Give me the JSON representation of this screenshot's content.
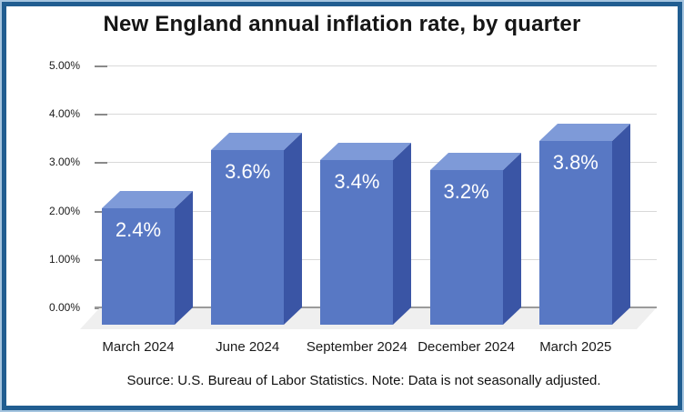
{
  "chart_data": {
    "type": "bar",
    "style": "3d-column",
    "title": "New England annual inflation rate, by quarter",
    "categories": [
      "March 2024",
      "June 2024",
      "September 2024",
      "December 2024",
      "March 2025"
    ],
    "values": [
      2.4,
      3.6,
      3.4,
      3.2,
      3.8
    ],
    "value_labels": [
      "2.4%",
      "3.6%",
      "3.4%",
      "3.2%",
      "3.8%"
    ],
    "ylim": [
      0,
      5
    ],
    "ytick_labels": [
      "0.00%",
      "1.00%",
      "2.00%",
      "3.00%",
      "4.00%",
      "5.00%"
    ],
    "grid": true,
    "legend": "none",
    "source_note": "Source: U.S. Bureau of Labor Statistics. Note: Data is not seasonally adjusted.",
    "colors": {
      "bar_front": "#5878c4",
      "bar_top": "#7e9ad8",
      "bar_side": "#3a55a5",
      "gridline": "#d9d9d9",
      "baseline": "#9b9b9b",
      "floor": "#efefef",
      "frame_dark": "#215e91",
      "frame_light": "#a6c5e0",
      "value_label_text": "#ffffff",
      "title_text": "#151515"
    }
  }
}
